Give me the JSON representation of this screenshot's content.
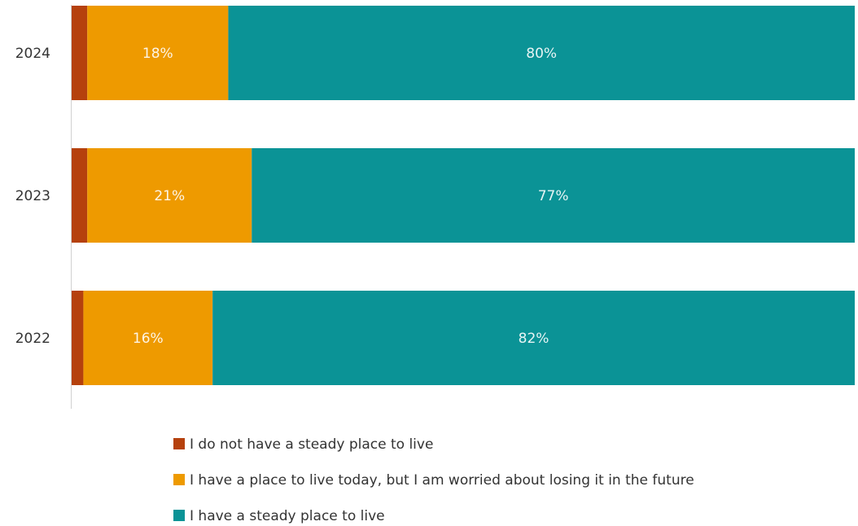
{
  "chart_data": {
    "type": "bar",
    "orientation": "horizontal",
    "stacked": true,
    "title": "",
    "xlabel": "",
    "ylabel": "",
    "xlim": [
      0,
      100
    ],
    "categories": [
      "2024",
      "2023",
      "2022"
    ],
    "series": [
      {
        "name": "I do not have a steady place to live",
        "color": "#b5410d",
        "values": [
          2,
          2,
          1.5
        ],
        "labels": [
          "",
          "",
          ""
        ]
      },
      {
        "name": "I have a place to live today, but I am worried about losing it in the future",
        "color": "#ee9a00",
        "values": [
          18,
          21,
          16.5
        ],
        "labels": [
          "18%",
          "21%",
          "16%"
        ]
      },
      {
        "name": "I have a steady place to live",
        "color": "#0b9396",
        "values": [
          80,
          77,
          82
        ],
        "labels": [
          "80%",
          "77%",
          "82%"
        ]
      }
    ],
    "grid": false,
    "legend_position": "bottom"
  }
}
